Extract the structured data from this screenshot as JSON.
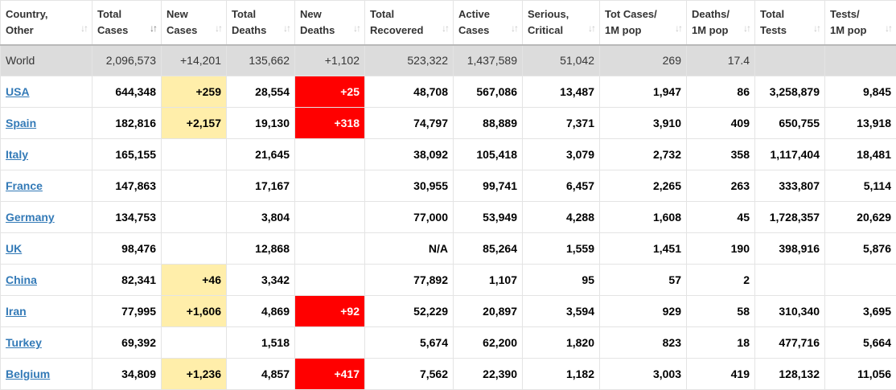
{
  "colors": {
    "header_border": "#b9b9b9",
    "world_row_bg": "#dcdcdc",
    "new_cases_bg": "#ffeeaa",
    "new_deaths_bg": "#ff0000",
    "link": "#337ab7"
  },
  "headers": [
    {
      "line1": "Country,",
      "line2": "Other",
      "sort_icon": "sort-arrows-icon",
      "sorted": false
    },
    {
      "line1": "Total",
      "line2": "Cases",
      "sort_icon": "sort-arrows-icon",
      "sorted": true
    },
    {
      "line1": "New",
      "line2": "Cases",
      "sort_icon": "sort-arrows-icon",
      "sorted": false
    },
    {
      "line1": "Total",
      "line2": "Deaths",
      "sort_icon": "sort-arrows-icon",
      "sorted": false
    },
    {
      "line1": "New",
      "line2": "Deaths",
      "sort_icon": "sort-arrows-icon",
      "sorted": false
    },
    {
      "line1": "Total",
      "line2": "Recovered",
      "sort_icon": "sort-arrows-icon",
      "sorted": false
    },
    {
      "line1": "Active",
      "line2": "Cases",
      "sort_icon": "sort-arrows-icon",
      "sorted": false
    },
    {
      "line1": "Serious,",
      "line2": "Critical",
      "sort_icon": "sort-arrows-icon",
      "sorted": false
    },
    {
      "line1": "Tot Cases/",
      "line2": "1M pop",
      "sort_icon": "sort-arrows-icon",
      "sorted": false
    },
    {
      "line1": "Deaths/",
      "line2": "1M pop",
      "sort_icon": "sort-arrows-icon",
      "sorted": false
    },
    {
      "line1": "Total",
      "line2": "Tests",
      "sort_icon": "sort-arrows-icon",
      "sorted": false
    },
    {
      "line1": "Tests/",
      "line2": "1M pop",
      "sort_icon": "sort-arrows-icon",
      "sorted": false
    }
  ],
  "world": [
    "World",
    "2,096,573",
    "+14,201",
    "135,662",
    "+1,102",
    "523,322",
    "1,437,589",
    "51,042",
    "269",
    "17.4",
    "",
    ""
  ],
  "rows": [
    [
      "USA",
      "644,348",
      "+259",
      "28,554",
      "+25",
      "48,708",
      "567,086",
      "13,487",
      "1,947",
      "86",
      "3,258,879",
      "9,845"
    ],
    [
      "Spain",
      "182,816",
      "+2,157",
      "19,130",
      "+318",
      "74,797",
      "88,889",
      "7,371",
      "3,910",
      "409",
      "650,755",
      "13,918"
    ],
    [
      "Italy",
      "165,155",
      "",
      "21,645",
      "",
      "38,092",
      "105,418",
      "3,079",
      "2,732",
      "358",
      "1,117,404",
      "18,481"
    ],
    [
      "France",
      "147,863",
      "",
      "17,167",
      "",
      "30,955",
      "99,741",
      "6,457",
      "2,265",
      "263",
      "333,807",
      "5,114"
    ],
    [
      "Germany",
      "134,753",
      "",
      "3,804",
      "",
      "77,000",
      "53,949",
      "4,288",
      "1,608",
      "45",
      "1,728,357",
      "20,629"
    ],
    [
      "UK",
      "98,476",
      "",
      "12,868",
      "",
      "N/A",
      "85,264",
      "1,559",
      "1,451",
      "190",
      "398,916",
      "5,876"
    ],
    [
      "China",
      "82,341",
      "+46",
      "3,342",
      "",
      "77,892",
      "1,107",
      "95",
      "57",
      "2",
      "",
      ""
    ],
    [
      "Iran",
      "77,995",
      "+1,606",
      "4,869",
      "+92",
      "52,229",
      "20,897",
      "3,594",
      "929",
      "58",
      "310,340",
      "3,695"
    ],
    [
      "Turkey",
      "69,392",
      "",
      "1,518",
      "",
      "5,674",
      "62,200",
      "1,820",
      "823",
      "18",
      "477,716",
      "5,664"
    ],
    [
      "Belgium",
      "34,809",
      "+1,236",
      "4,857",
      "+417",
      "7,562",
      "22,390",
      "1,182",
      "3,003",
      "419",
      "128,132",
      "11,056"
    ]
  ]
}
